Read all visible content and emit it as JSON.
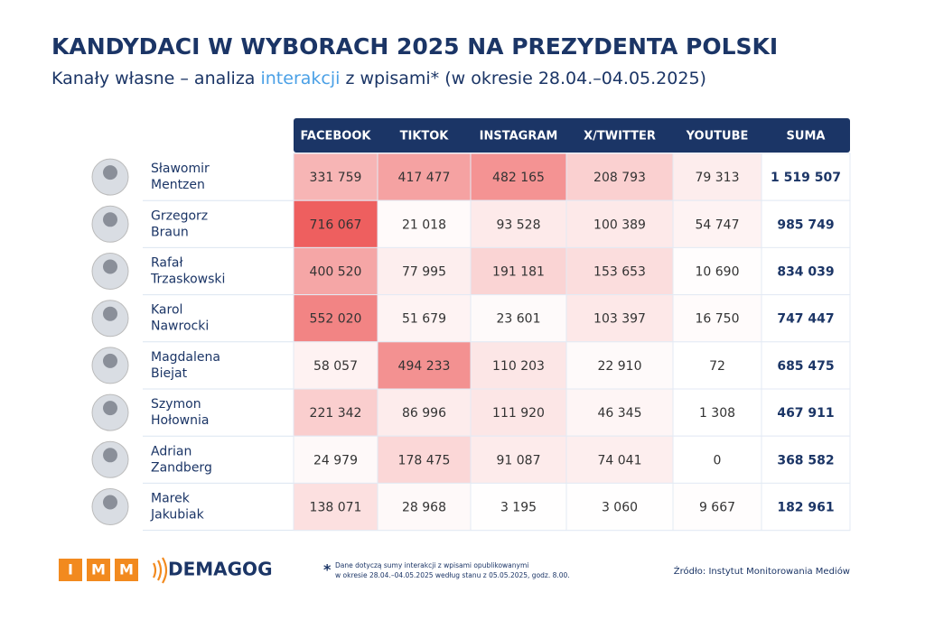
{
  "header": {
    "title": "KANDYDACI W WYBORACH 2025 NA PREZYDENTA POLSKI",
    "subtitle": [
      "Kanały własne – analiza ",
      "interakcji",
      " z wpisami* (w okresie 28.04.–04.05.2025)"
    ]
  },
  "table": {
    "columns": [
      "FACEBOOK",
      "TIKTOK",
      "INSTAGRAM",
      "X/TWITTER",
      "YOUTUBE",
      "SUMA"
    ],
    "rows": [
      {
        "first": "Sławomir",
        "last": "Mentzen",
        "cells": [
          "331 759",
          "417 477",
          "482 165",
          "208 793",
          "79 313",
          "1 519 507"
        ]
      },
      {
        "first": "Grzegorz",
        "last": "Braun",
        "cells": [
          "716 067",
          "21 018",
          "93 528",
          "100 389",
          "54 747",
          "985 749"
        ]
      },
      {
        "first": "Rafał",
        "last": "Trzaskowski",
        "cells": [
          "400 520",
          "77 995",
          "191 181",
          "153 653",
          "10 690",
          "834 039"
        ]
      },
      {
        "first": "Karol",
        "last": "Nawrocki",
        "cells": [
          "552 020",
          "51 679",
          "23 601",
          "103 397",
          "16 750",
          "747 447"
        ]
      },
      {
        "first": "Magdalena",
        "last": "Biejat",
        "cells": [
          "58 057",
          "494 233",
          "110 203",
          "22 910",
          "72",
          "685 475"
        ]
      },
      {
        "first": "Szymon",
        "last": "Hołownia",
        "cells": [
          "221 342",
          "86 996",
          "111 920",
          "46 345",
          "1 308",
          "467 911"
        ]
      },
      {
        "first": "Adrian",
        "last": "Zandberg",
        "cells": [
          "24 979",
          "178 475",
          "91 087",
          "74 041",
          "0",
          "368 582"
        ]
      },
      {
        "first": "Marek",
        "last": "Jakubiak",
        "cells": [
          "138 071",
          "28 968",
          "3 195",
          "3 060",
          "9 667",
          "182 961"
        ]
      }
    ],
    "heat_color": "#ee5f5f"
  },
  "footer": {
    "logo_imm": [
      "I",
      "M",
      "M"
    ],
    "logo_demagog": "DEMAGOG",
    "note_mark": "*",
    "note": [
      "Dane dotyczą sumy interakcji z wpisami opublikowanymi",
      "w okresie 28.04.–04.05.2025 według stanu z 05.05.2025, godz. 8.00."
    ],
    "source": "Źródło: Instytut Monitorowania Mediów"
  }
}
